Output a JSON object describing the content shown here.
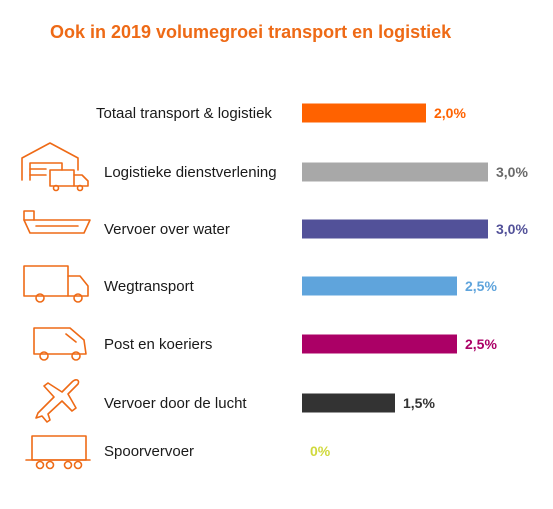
{
  "chart_data": {
    "type": "bar",
    "title": "Ook in 2019 volumegroei transport en logistiek",
    "orientation": "horizontal",
    "categories": [
      "Totaal transport & logistiek",
      "Logistieke dienstverlening",
      "Vervoer over water",
      "Wegtransport",
      "Post en koeriers",
      "Vervoer door de lucht",
      "Spoorvervoer"
    ],
    "values": [
      2.0,
      3.0,
      3.0,
      2.5,
      2.5,
      1.5,
      0
    ],
    "value_labels": [
      "2,0%",
      "3,0%",
      "3,0%",
      "2,5%",
      "2,5%",
      "1,5%",
      "0%"
    ],
    "bar_colors": [
      "#ff6200",
      "#a8a8a8",
      "#525199",
      "#5fa4dc",
      "#ab0066",
      "#333333",
      "#d0d93c"
    ],
    "label_colors": [
      "#ff6200",
      "#696969",
      "#525199",
      "#5fa4dc",
      "#ab0066",
      "#333333",
      "#d0d93c"
    ],
    "icons": [
      "",
      "warehouse-truck-icon",
      "ship-icon",
      "truck-icon",
      "van-icon",
      "airplane-icon",
      "train-wagon-icon"
    ],
    "xlim": [
      0,
      3.0
    ],
    "grid": false,
    "legend": "none"
  }
}
